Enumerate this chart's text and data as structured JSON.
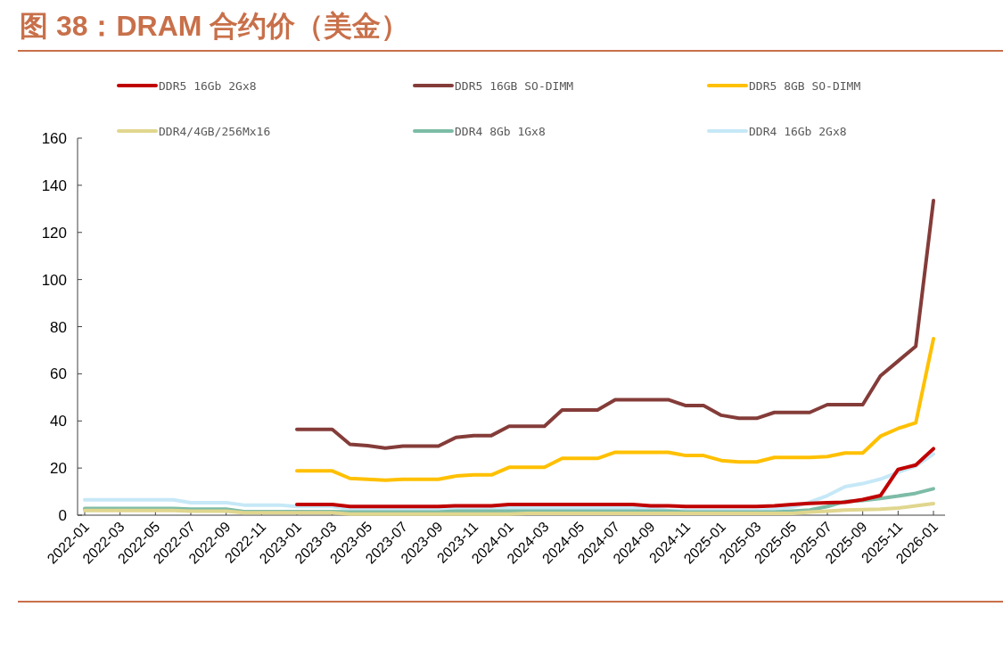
{
  "chart_data": {
    "type": "line",
    "title": "图 38：DRAM 合约价（美金）",
    "categories": [
      "2022-01",
      null,
      "2022-03",
      null,
      "2022-05",
      null,
      "2022-07",
      null,
      "2022-09",
      null,
      "2022-11",
      null,
      "2023-01",
      null,
      "2023-03",
      null,
      "2023-05",
      null,
      "2023-07",
      null,
      "2023-09",
      null,
      "2023-11",
      null,
      "2024-01",
      null,
      "2024-03",
      null,
      "2024-05",
      null,
      "2024-07",
      null,
      "2024-09",
      null,
      "2024-11",
      null,
      "2025-01",
      null,
      "2025-03",
      null,
      "2025-05",
      null,
      "2025-07",
      null,
      "2025-09",
      null,
      "2025-11",
      null,
      "2026-01"
    ],
    "series": [
      {
        "name": "DDR5 16Gb 2Gx8",
        "color": "#c00000",
        "values": [
          null,
          null,
          null,
          null,
          null,
          null,
          null,
          null,
          null,
          null,
          null,
          null,
          4.5,
          4.5,
          4.5,
          3.7,
          3.7,
          3.7,
          3.7,
          3.7,
          3.7,
          4.0,
          4.0,
          4.0,
          4.5,
          4.5,
          4.5,
          4.5,
          4.5,
          4.5,
          4.5,
          4.5,
          4.0,
          4.0,
          3.7,
          3.7,
          3.7,
          3.7,
          3.7,
          4.0,
          4.5,
          5.0,
          5.3,
          5.5,
          6.6,
          8.3,
          19.4,
          21.3,
          28.2
        ]
      },
      {
        "name": "DDR5 16GB SO-DIMM",
        "color": "#843c39",
        "values": [
          null,
          null,
          null,
          null,
          null,
          null,
          null,
          null,
          null,
          null,
          null,
          null,
          36.4,
          36.4,
          36.4,
          30.1,
          29.5,
          28.5,
          29.3,
          29.3,
          29.3,
          33.0,
          33.8,
          33.8,
          37.7,
          37.7,
          37.7,
          44.6,
          44.6,
          44.6,
          49.0,
          49.0,
          49.0,
          49.0,
          46.5,
          46.5,
          42.4,
          41.1,
          41.1,
          43.6,
          43.6,
          43.6,
          46.9,
          46.9,
          46.9,
          59.1,
          65.4,
          71.7,
          133.5
        ]
      },
      {
        "name": "DDR5 8GB SO-DIMM",
        "color": "#ffc000",
        "values": [
          null,
          null,
          null,
          null,
          null,
          null,
          null,
          null,
          null,
          null,
          null,
          null,
          18.8,
          18.8,
          18.8,
          15.6,
          15.2,
          14.8,
          15.2,
          15.2,
          15.2,
          16.6,
          17.1,
          17.1,
          20.3,
          20.3,
          20.3,
          24.1,
          24.1,
          24.1,
          26.7,
          26.7,
          26.7,
          26.7,
          25.3,
          25.3,
          23.2,
          22.6,
          22.6,
          24.5,
          24.5,
          24.5,
          24.9,
          26.4,
          26.4,
          33.5,
          36.8,
          39.2,
          74.9
        ]
      },
      {
        "name": "DDR4/4GB/256Mx16",
        "color": "#e0d68e",
        "values": [
          2.0,
          2.0,
          2.0,
          2.0,
          2.0,
          2.0,
          1.7,
          1.7,
          1.7,
          1.0,
          1.0,
          1.0,
          1.0,
          1.0,
          1.0,
          0.5,
          0.5,
          0.5,
          0.5,
          0.5,
          0.5,
          0.5,
          0.5,
          0.5,
          0.5,
          0.8,
          0.8,
          0.8,
          0.8,
          0.8,
          0.8,
          0.8,
          0.8,
          0.8,
          0.8,
          0.8,
          0.8,
          0.8,
          0.8,
          0.8,
          0.8,
          1.3,
          1.7,
          2.2,
          2.4,
          2.6,
          3.0,
          4.0,
          4.9
        ]
      },
      {
        "name": "DDR4 8Gb 1Gx8",
        "color": "#7dbca6",
        "values": [
          2.8,
          2.8,
          2.8,
          2.8,
          2.8,
          2.8,
          2.6,
          2.6,
          2.6,
          1.5,
          1.5,
          1.5,
          1.5,
          1.5,
          1.5,
          1.3,
          1.3,
          1.3,
          1.3,
          1.3,
          1.3,
          1.7,
          1.7,
          1.7,
          1.7,
          1.7,
          1.7,
          1.7,
          1.7,
          1.7,
          1.7,
          1.7,
          1.7,
          1.7,
          1.3,
          1.3,
          1.3,
          1.3,
          1.3,
          1.3,
          1.7,
          2.2,
          3.7,
          5.8,
          6.2,
          7.1,
          8.1,
          9.3,
          11.2
        ]
      },
      {
        "name": "DDR4 16Gb 2Gx8",
        "color": "#c6e8f7",
        "values": [
          6.5,
          6.5,
          6.5,
          6.5,
          6.5,
          6.5,
          5.3,
          5.3,
          5.3,
          4.3,
          4.3,
          4.3,
          3.7,
          3.7,
          3.7,
          2.6,
          2.6,
          2.6,
          2.6,
          2.6,
          2.6,
          2.8,
          3.0,
          3.0,
          3.0,
          3.0,
          3.0,
          3.0,
          3.0,
          3.0,
          3.0,
          3.0,
          3.0,
          2.0,
          2.0,
          2.0,
          2.0,
          2.0,
          2.0,
          2.5,
          3.5,
          5.5,
          8.3,
          12.1,
          13.4,
          15.3,
          18.2,
          20.9,
          26.0
        ]
      }
    ],
    "ylim": [
      0,
      160
    ],
    "yticks": [
      0,
      20,
      40,
      60,
      80,
      100,
      120,
      140,
      160
    ],
    "legend": "top",
    "marker": "none",
    "line_style": "solid"
  }
}
